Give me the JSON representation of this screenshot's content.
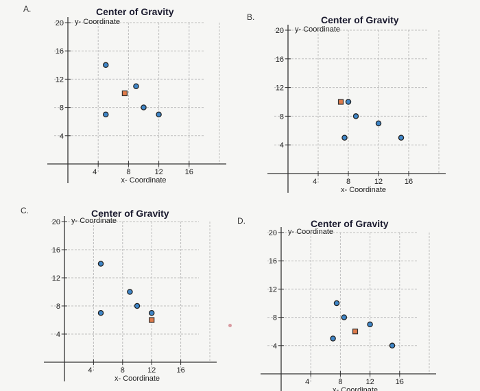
{
  "colors": {
    "center_fill": "#e07b4a",
    "center_stroke": "#333333",
    "point_fill": "#3f86c8",
    "point_stroke": "#222222",
    "grid": "#bdbdbd",
    "axis": "#333333"
  },
  "chart_data": [
    {
      "type": "scatter",
      "option": "A.",
      "title": "Center of Gravity",
      "ylabel": "y- Coordinate",
      "xlabel": "x- Coordinate",
      "xticks": [
        4,
        8,
        12,
        16
      ],
      "yticks": [
        4,
        8,
        12,
        16,
        20
      ],
      "xlim": [
        0,
        20
      ],
      "ylim": [
        0,
        20
      ],
      "points": [
        {
          "x": 5,
          "y": 14
        },
        {
          "x": 9,
          "y": 11
        },
        {
          "x": 5,
          "y": 7
        },
        {
          "x": 10,
          "y": 8
        },
        {
          "x": 12,
          "y": 7
        }
      ],
      "center": {
        "x": 7.5,
        "y": 10
      }
    },
    {
      "type": "scatter",
      "option": "B.",
      "title": "Center of Gravity",
      "ylabel": "y- Coordinate",
      "xlabel": "x- Coordinate",
      "xticks": [
        4,
        8,
        12,
        16
      ],
      "yticks": [
        4,
        8,
        12,
        16,
        20
      ],
      "xlim": [
        0,
        20
      ],
      "ylim": [
        0,
        20
      ],
      "points": [
        {
          "x": 8,
          "y": 10
        },
        {
          "x": 9,
          "y": 8
        },
        {
          "x": 12,
          "y": 7
        },
        {
          "x": 15,
          "y": 5
        },
        {
          "x": 7.5,
          "y": 5
        }
      ],
      "center": {
        "x": 7,
        "y": 10
      }
    },
    {
      "type": "scatter",
      "option": "C.",
      "title": "Center of Gravity",
      "ylabel": "y- Coordinate",
      "xlabel": "x- Coordinate",
      "xticks": [
        4,
        8,
        12,
        16
      ],
      "yticks": [
        4,
        8,
        12,
        16,
        20
      ],
      "xlim": [
        0,
        20
      ],
      "ylim": [
        0,
        20
      ],
      "points": [
        {
          "x": 5,
          "y": 14
        },
        {
          "x": 9,
          "y": 10
        },
        {
          "x": 10,
          "y": 8
        },
        {
          "x": 12,
          "y": 7
        },
        {
          "x": 5,
          "y": 7
        }
      ],
      "center": {
        "x": 12,
        "y": 6
      }
    },
    {
      "type": "scatter",
      "option": "D.",
      "title": "Center of Gravity",
      "ylabel": "y- Coordinate",
      "xlabel": "x- Coordinate",
      "xticks": [
        4,
        8,
        12,
        16
      ],
      "yticks": [
        4,
        8,
        12,
        16,
        20
      ],
      "xlim": [
        0,
        20
      ],
      "ylim": [
        0,
        20
      ],
      "points": [
        {
          "x": 7.5,
          "y": 10
        },
        {
          "x": 8.5,
          "y": 8
        },
        {
          "x": 12,
          "y": 7
        },
        {
          "x": 15,
          "y": 4
        },
        {
          "x": 7,
          "y": 5
        }
      ],
      "center": {
        "x": 10,
        "y": 6
      }
    }
  ]
}
